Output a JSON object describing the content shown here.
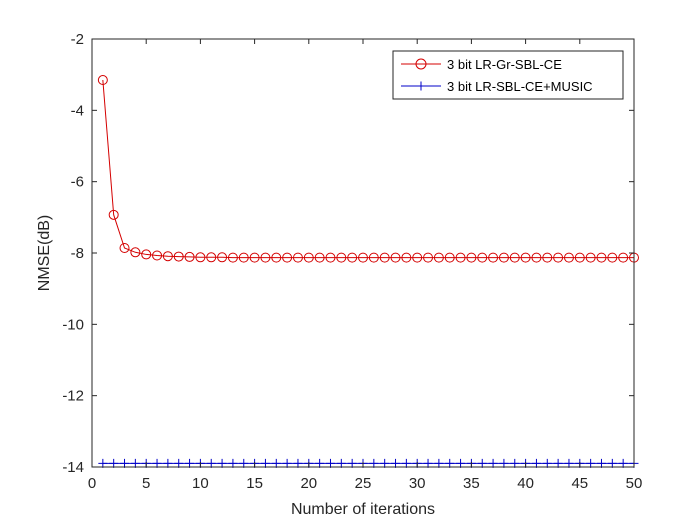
{
  "chart_data": {
    "type": "line",
    "title": "",
    "xlabel": "Number of iterations",
    "ylabel": "NMSE(dB)",
    "xlim": [
      0,
      50
    ],
    "ylim": [
      -14,
      -2
    ],
    "xticks": [
      0,
      5,
      10,
      15,
      20,
      25,
      30,
      35,
      40,
      45,
      50
    ],
    "yticks": [
      -14,
      -12,
      -10,
      -8,
      -6,
      -4,
      -2
    ],
    "grid": false,
    "legend_position": "top-right",
    "series": [
      {
        "name": "3 bit LR-Gr-SBL-CE",
        "color": "#d40000",
        "marker": "circle",
        "x": [
          1,
          2,
          3,
          4,
          5,
          6,
          7,
          8,
          9,
          10,
          11,
          12,
          13,
          14,
          15,
          16,
          17,
          18,
          19,
          20,
          21,
          22,
          23,
          24,
          25,
          26,
          27,
          28,
          29,
          30,
          31,
          32,
          33,
          34,
          35,
          36,
          37,
          38,
          39,
          40,
          41,
          42,
          43,
          44,
          45,
          46,
          47,
          48,
          49,
          50
        ],
        "values": [
          -3.15,
          -6.93,
          -7.86,
          -7.98,
          -8.04,
          -8.07,
          -8.09,
          -8.1,
          -8.11,
          -8.12,
          -8.12,
          -8.12,
          -8.13,
          -8.13,
          -8.13,
          -8.13,
          -8.13,
          -8.13,
          -8.13,
          -8.13,
          -8.13,
          -8.13,
          -8.13,
          -8.13,
          -8.13,
          -8.13,
          -8.13,
          -8.13,
          -8.13,
          -8.13,
          -8.13,
          -8.13,
          -8.13,
          -8.13,
          -8.13,
          -8.13,
          -8.13,
          -8.13,
          -8.13,
          -8.13,
          -8.13,
          -8.13,
          -8.13,
          -8.13,
          -8.13,
          -8.13,
          -8.13,
          -8.13,
          -8.13,
          -8.13
        ]
      },
      {
        "name": "3 bit LR-SBL-CE+MUSIC",
        "color": "#0000c8",
        "marker": "plus",
        "x": [
          1,
          2,
          3,
          4,
          5,
          6,
          7,
          8,
          9,
          10,
          11,
          12,
          13,
          14,
          15,
          16,
          17,
          18,
          19,
          20,
          21,
          22,
          23,
          24,
          25,
          26,
          27,
          28,
          29,
          30,
          31,
          32,
          33,
          34,
          35,
          36,
          37,
          38,
          39,
          40,
          41,
          42,
          43,
          44,
          45,
          46,
          47,
          48,
          49,
          50
        ],
        "values": [
          -13.9,
          -13.9,
          -13.9,
          -13.9,
          -13.9,
          -13.9,
          -13.9,
          -13.9,
          -13.9,
          -13.9,
          -13.9,
          -13.9,
          -13.9,
          -13.9,
          -13.9,
          -13.9,
          -13.9,
          -13.9,
          -13.9,
          -13.9,
          -13.9,
          -13.9,
          -13.9,
          -13.9,
          -13.9,
          -13.9,
          -13.9,
          -13.9,
          -13.9,
          -13.9,
          -13.9,
          -13.9,
          -13.9,
          -13.9,
          -13.9,
          -13.9,
          -13.9,
          -13.9,
          -13.9,
          -13.9,
          -13.9,
          -13.9,
          -13.9,
          -13.9,
          -13.9,
          -13.9,
          -13.9,
          -13.9,
          -13.9,
          -13.9
        ]
      }
    ]
  }
}
